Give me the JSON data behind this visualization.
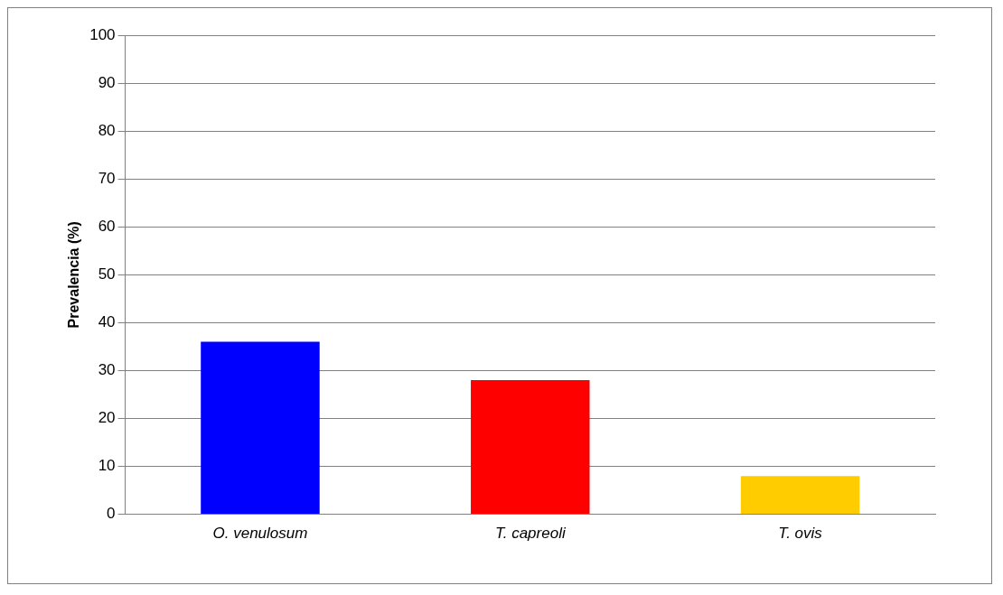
{
  "chart_data": {
    "type": "bar",
    "ylabel": "Prevalencia (%)",
    "categories": [
      "O. venulosum",
      "T. capreoli",
      "T. ovis"
    ],
    "values": [
      36,
      28,
      8
    ],
    "colors": [
      "#0000ff",
      "#ff0000",
      "#ffcc00"
    ],
    "ylim": [
      0,
      100
    ],
    "yticks": [
      0,
      10,
      20,
      30,
      40,
      50,
      60,
      70,
      80,
      90,
      100
    ],
    "grid": "y",
    "legend": false
  }
}
